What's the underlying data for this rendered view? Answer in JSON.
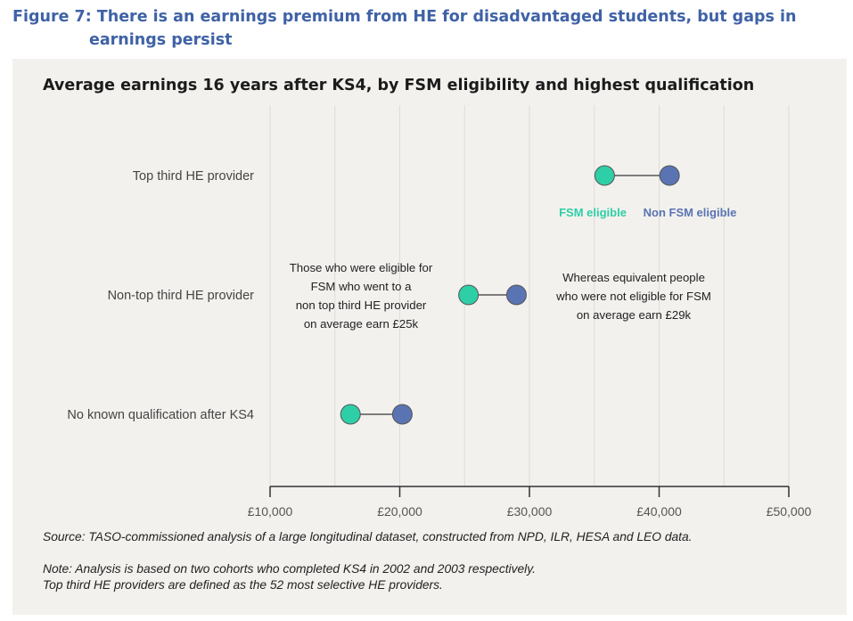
{
  "figure_title_line1": "Figure 7: There is an earnings premium from HE for disadvantaged students, but gaps in",
  "figure_title_line2": "earnings persist",
  "colors": {
    "fsm": "#2ecfa7",
    "non_fsm": "#5a74b3",
    "figure_title": "#3f62a6",
    "panel": "#f2f1ee"
  },
  "chart_data": {
    "type": "dumbbell",
    "title": "Average earnings 16 years after KS4, by FSM eligibility and highest qualification",
    "xlim": [
      10000,
      50000
    ],
    "x_ticks": [
      10000,
      20000,
      30000,
      40000,
      50000
    ],
    "x_tick_labels": [
      "£10,000",
      "£20,000",
      "£30,000",
      "£40,000",
      "£50,000"
    ],
    "grid": "vertical",
    "categories": [
      "Top third HE provider",
      "Non-top third HE provider",
      "No known qualification after KS4"
    ],
    "series": [
      {
        "name": "FSM eligible",
        "color": "#2ecfa7",
        "values": [
          35800,
          25300,
          16200
        ]
      },
      {
        "name": "Non FSM eligible",
        "color": "#5a74b3",
        "values": [
          40800,
          29000,
          20200
        ]
      }
    ],
    "legend_placement": "below top row",
    "annotations": [
      {
        "lines": [
          "Those who were eligible for",
          "FSM who went to a",
          "non top third HE provider",
          "on average earn £25k"
        ],
        "placement": "left of middle row"
      },
      {
        "lines": [
          "Whereas equivalent people",
          "who were not eligible for FSM",
          "on average earn £29k"
        ],
        "placement": "right of middle row"
      }
    ]
  },
  "source": "Source: TASO-commissioned analysis of a large longitudinal dataset, constructed from NPD, ILR, HESA and LEO data.",
  "note_line1": "Note: Analysis is based on two cohorts who completed KS4 in 2002 and 2003 respectively.",
  "note_line2": "Top third HE providers are defined as the 52 most selective HE providers."
}
